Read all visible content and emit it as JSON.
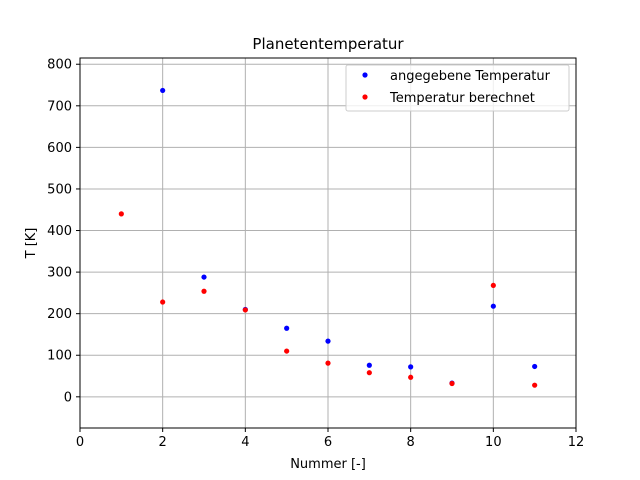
{
  "chart_data": {
    "type": "scatter",
    "title": "Planetentemperatur",
    "xlabel": "Nummer [-]",
    "ylabel": "T [K]",
    "xlim": [
      0,
      12
    ],
    "ylim": [
      -75,
      815
    ],
    "xticks": [
      0,
      2,
      4,
      6,
      8,
      10,
      12
    ],
    "yticks": [
      0,
      100,
      200,
      300,
      400,
      500,
      600,
      700,
      800
    ],
    "grid": true,
    "legend_position": "top-right",
    "series": [
      {
        "name": "angegebene Temperatur",
        "color": "#0000ff",
        "points": [
          {
            "x": 2,
            "y": 737
          },
          {
            "x": 3,
            "y": 288
          },
          {
            "x": 4,
            "y": 210
          },
          {
            "x": 5,
            "y": 165
          },
          {
            "x": 6,
            "y": 134
          },
          {
            "x": 7,
            "y": 76
          },
          {
            "x": 8,
            "y": 72
          },
          {
            "x": 9,
            "y": 33
          },
          {
            "x": 10,
            "y": 218
          },
          {
            "x": 11,
            "y": 73
          }
        ]
      },
      {
        "name": "Temperatur berechnet",
        "color": "#ff0000",
        "points": [
          {
            "x": 1,
            "y": 440
          },
          {
            "x": 2,
            "y": 228
          },
          {
            "x": 3,
            "y": 254
          },
          {
            "x": 4,
            "y": 209
          },
          {
            "x": 5,
            "y": 110
          },
          {
            "x": 6,
            "y": 81
          },
          {
            "x": 7,
            "y": 58
          },
          {
            "x": 8,
            "y": 47
          },
          {
            "x": 9,
            "y": 32
          },
          {
            "x": 10,
            "y": 268
          },
          {
            "x": 11,
            "y": 28
          }
        ]
      }
    ]
  }
}
